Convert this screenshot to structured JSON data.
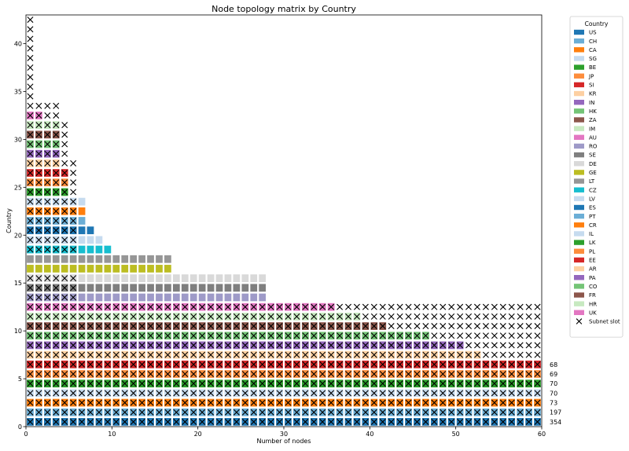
{
  "chart_data": {
    "type": "heatmap",
    "title": "Node topology matrix by Country",
    "xlabel": "Number of nodes",
    "ylabel": "Country",
    "xlim": [
      0,
      60
    ],
    "ylim": [
      0,
      43
    ],
    "xticks": [
      "0",
      "10",
      "20",
      "30",
      "40",
      "50",
      "60"
    ],
    "yticks": [
      "0",
      "5",
      "10",
      "15",
      "20",
      "25",
      "30",
      "35",
      "40"
    ],
    "grid": false,
    "legend_title": "Country",
    "legend_position": "right, outside plot area",
    "slot_marker_label": "Subnet slot",
    "row_end_labels": [
      {
        "row": 0,
        "text": "354"
      },
      {
        "row": 1,
        "text": "197"
      },
      {
        "row": 2,
        "text": "73"
      },
      {
        "row": 3,
        "text": "70"
      },
      {
        "row": 4,
        "text": "70"
      },
      {
        "row": 5,
        "text": "69"
      },
      {
        "row": 6,
        "text": "68"
      }
    ],
    "series": [
      {
        "name": "US",
        "color": "#1f77b4",
        "nodes": 60
      },
      {
        "name": "CH",
        "color": "#6baed6",
        "nodes": 60
      },
      {
        "name": "CA",
        "color": "#ff7f0e",
        "nodes": 60
      },
      {
        "name": "SG",
        "color": "#c6dbef",
        "nodes": 60
      },
      {
        "name": "BE",
        "color": "#2ca02c",
        "nodes": 60
      },
      {
        "name": "JP",
        "color": "#fd8d3c",
        "nodes": 60
      },
      {
        "name": "SI",
        "color": "#d62728",
        "nodes": 60
      },
      {
        "name": "KR",
        "color": "#fdd0a2",
        "nodes": 53
      },
      {
        "name": "IN",
        "color": "#9467bd",
        "nodes": 51
      },
      {
        "name": "HK",
        "color": "#74c476",
        "nodes": 47
      },
      {
        "name": "ZA",
        "color": "#8c564b",
        "nodes": 42
      },
      {
        "name": "IM",
        "color": "#c7e9c0",
        "nodes": 39
      },
      {
        "name": "AU",
        "color": "#e377c2",
        "nodes": 36
      },
      {
        "name": "RO",
        "color": "#9e9ac8",
        "nodes": 28
      },
      {
        "name": "SE",
        "color": "#7f7f7f",
        "nodes": 28
      },
      {
        "name": "DE",
        "color": "#d9d9d9",
        "nodes": 28
      },
      {
        "name": "GE",
        "color": "#bcbd22",
        "nodes": 17
      },
      {
        "name": "LT",
        "color": "#969696",
        "nodes": 17
      },
      {
        "name": "CZ",
        "color": "#17becf",
        "nodes": 10
      },
      {
        "name": "LV",
        "color": "#c6dbef",
        "nodes": 9
      },
      {
        "name": "ES",
        "color": "#1f77b4",
        "nodes": 8
      },
      {
        "name": "PT",
        "color": "#6baed6",
        "nodes": 7
      },
      {
        "name": "CR",
        "color": "#ff7f0e",
        "nodes": 7
      },
      {
        "name": "IL",
        "color": "#c6dbef",
        "nodes": 7
      },
      {
        "name": "LK",
        "color": "#2ca02c",
        "nodes": 5
      },
      {
        "name": "PL",
        "color": "#fd8d3c",
        "nodes": 5
      },
      {
        "name": "EE",
        "color": "#d62728",
        "nodes": 5
      },
      {
        "name": "AR",
        "color": "#fdd0a2",
        "nodes": 4
      },
      {
        "name": "PA",
        "color": "#9467bd",
        "nodes": 4
      },
      {
        "name": "CO",
        "color": "#74c476",
        "nodes": 4
      },
      {
        "name": "FR",
        "color": "#8c564b",
        "nodes": 4
      },
      {
        "name": "HR",
        "color": "#c7e9c0",
        "nodes": 4
      },
      {
        "name": "UK",
        "color": "#e377c2",
        "nodes": 2
      }
    ],
    "subnet_slots": [
      60,
      60,
      60,
      60,
      60,
      60,
      60,
      60,
      60,
      60,
      60,
      60,
      60,
      6,
      6,
      6,
      0,
      0,
      6,
      6,
      6,
      6,
      6,
      6,
      6,
      6,
      6,
      6,
      5,
      5,
      5,
      5,
      4,
      4,
      1,
      1,
      1,
      1,
      1,
      1,
      1,
      1,
      1
    ]
  }
}
